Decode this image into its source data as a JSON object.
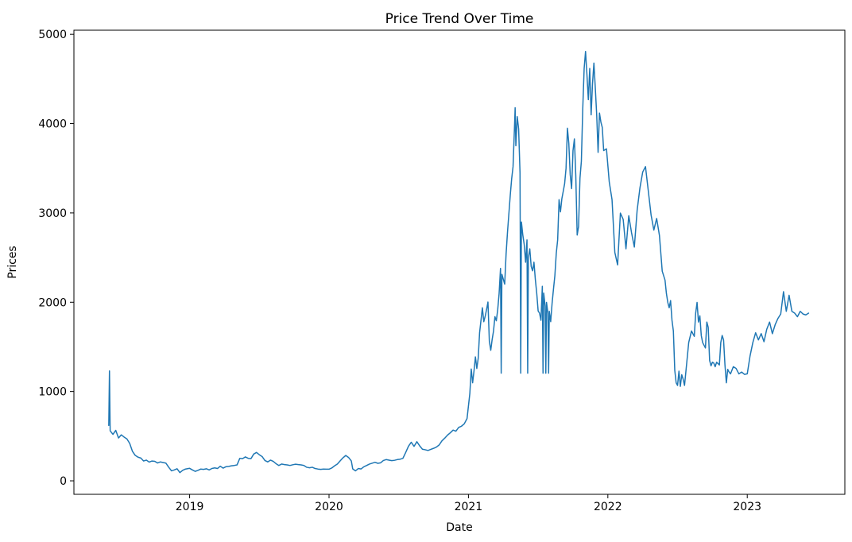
{
  "chart_data": {
    "type": "line",
    "title": "Price Trend Over Time",
    "xlabel": "Date",
    "ylabel": "Prices",
    "line_color": "#1f77b4",
    "background_color": "#ffffff",
    "legend": null,
    "grid": false,
    "xlim": [
      2018.17,
      2023.7
    ],
    "ylim": [
      -151,
      5046
    ],
    "xticks": [
      2019,
      2020,
      2021,
      2022,
      2023
    ],
    "yticks": [
      0,
      1000,
      2000,
      3000,
      4000,
      5000
    ],
    "x_unit": "year (fractional)",
    "points": [
      [
        2018.42,
        620
      ],
      [
        2018.425,
        1230
      ],
      [
        2018.43,
        560
      ],
      [
        2018.45,
        520
      ],
      [
        2018.47,
        565
      ],
      [
        2018.49,
        480
      ],
      [
        2018.51,
        515
      ],
      [
        2018.53,
        490
      ],
      [
        2018.55,
        470
      ],
      [
        2018.57,
        420
      ],
      [
        2018.59,
        330
      ],
      [
        2018.61,
        285
      ],
      [
        2018.63,
        265
      ],
      [
        2018.65,
        255
      ],
      [
        2018.67,
        222
      ],
      [
        2018.69,
        232
      ],
      [
        2018.71,
        210
      ],
      [
        2018.73,
        222
      ],
      [
        2018.75,
        218
      ],
      [
        2018.77,
        200
      ],
      [
        2018.79,
        212
      ],
      [
        2018.81,
        205
      ],
      [
        2018.83,
        198
      ],
      [
        2018.85,
        152
      ],
      [
        2018.87,
        112
      ],
      [
        2018.89,
        122
      ],
      [
        2018.91,
        135
      ],
      [
        2018.93,
        92
      ],
      [
        2018.95,
        118
      ],
      [
        2018.97,
        132
      ],
      [
        2019.0,
        140
      ],
      [
        2019.02,
        122
      ],
      [
        2019.04,
        106
      ],
      [
        2019.06,
        118
      ],
      [
        2019.08,
        132
      ],
      [
        2019.1,
        128
      ],
      [
        2019.12,
        135
      ],
      [
        2019.14,
        122
      ],
      [
        2019.16,
        138
      ],
      [
        2019.18,
        145
      ],
      [
        2019.2,
        138
      ],
      [
        2019.22,
        164
      ],
      [
        2019.24,
        142
      ],
      [
        2019.26,
        158
      ],
      [
        2019.28,
        162
      ],
      [
        2019.3,
        168
      ],
      [
        2019.32,
        172
      ],
      [
        2019.34,
        178
      ],
      [
        2019.36,
        252
      ],
      [
        2019.38,
        248
      ],
      [
        2019.4,
        268
      ],
      [
        2019.42,
        252
      ],
      [
        2019.44,
        248
      ],
      [
        2019.46,
        300
      ],
      [
        2019.48,
        318
      ],
      [
        2019.5,
        292
      ],
      [
        2019.52,
        272
      ],
      [
        2019.54,
        228
      ],
      [
        2019.56,
        212
      ],
      [
        2019.58,
        232
      ],
      [
        2019.6,
        218
      ],
      [
        2019.62,
        192
      ],
      [
        2019.64,
        172
      ],
      [
        2019.66,
        188
      ],
      [
        2019.68,
        182
      ],
      [
        2019.7,
        178
      ],
      [
        2019.72,
        172
      ],
      [
        2019.74,
        180
      ],
      [
        2019.76,
        186
      ],
      [
        2019.78,
        182
      ],
      [
        2019.8,
        178
      ],
      [
        2019.82,
        172
      ],
      [
        2019.84,
        152
      ],
      [
        2019.86,
        146
      ],
      [
        2019.88,
        152
      ],
      [
        2019.9,
        138
      ],
      [
        2019.92,
        132
      ],
      [
        2019.94,
        128
      ],
      [
        2019.96,
        132
      ],
      [
        2019.98,
        130
      ],
      [
        2020.0,
        130
      ],
      [
        2020.02,
        144
      ],
      [
        2020.04,
        168
      ],
      [
        2020.06,
        188
      ],
      [
        2020.08,
        224
      ],
      [
        2020.1,
        258
      ],
      [
        2020.12,
        284
      ],
      [
        2020.14,
        262
      ],
      [
        2020.16,
        222
      ],
      [
        2020.17,
        134
      ],
      [
        2020.19,
        112
      ],
      [
        2020.21,
        138
      ],
      [
        2020.23,
        133
      ],
      [
        2020.25,
        158
      ],
      [
        2020.27,
        172
      ],
      [
        2020.29,
        188
      ],
      [
        2020.31,
        198
      ],
      [
        2020.33,
        208
      ],
      [
        2020.35,
        196
      ],
      [
        2020.37,
        202
      ],
      [
        2020.39,
        228
      ],
      [
        2020.41,
        238
      ],
      [
        2020.43,
        232
      ],
      [
        2020.45,
        226
      ],
      [
        2020.47,
        230
      ],
      [
        2020.49,
        238
      ],
      [
        2020.51,
        242
      ],
      [
        2020.53,
        252
      ],
      [
        2020.55,
        318
      ],
      [
        2020.57,
        388
      ],
      [
        2020.59,
        432
      ],
      [
        2020.61,
        386
      ],
      [
        2020.63,
        438
      ],
      [
        2020.65,
        392
      ],
      [
        2020.67,
        354
      ],
      [
        2020.69,
        348
      ],
      [
        2020.71,
        340
      ],
      [
        2020.73,
        352
      ],
      [
        2020.75,
        364
      ],
      [
        2020.77,
        378
      ],
      [
        2020.79,
        402
      ],
      [
        2020.81,
        448
      ],
      [
        2020.83,
        478
      ],
      [
        2020.85,
        512
      ],
      [
        2020.87,
        538
      ],
      [
        2020.89,
        568
      ],
      [
        2020.91,
        556
      ],
      [
        2020.93,
        598
      ],
      [
        2020.95,
        612
      ],
      [
        2020.97,
        638
      ],
      [
        2020.99,
        698
      ],
      [
        2021.01,
        978
      ],
      [
        2021.02,
        1252
      ],
      [
        2021.03,
        1098
      ],
      [
        2021.04,
        1232
      ],
      [
        2021.05,
        1388
      ],
      [
        2021.06,
        1258
      ],
      [
        2021.07,
        1372
      ],
      [
        2021.08,
        1658
      ],
      [
        2021.09,
        1798
      ],
      [
        2021.1,
        1938
      ],
      [
        2021.11,
        1782
      ],
      [
        2021.12,
        1842
      ],
      [
        2021.13,
        1918
      ],
      [
        2021.14,
        2002
      ],
      [
        2021.15,
        1562
      ],
      [
        2021.16,
        1462
      ],
      [
        2021.17,
        1582
      ],
      [
        2021.18,
        1678
      ],
      [
        2021.19,
        1838
      ],
      [
        2021.2,
        1792
      ],
      [
        2021.21,
        1918
      ],
      [
        2021.22,
        2098
      ],
      [
        2021.23,
        2378
      ],
      [
        2021.235,
        1205
      ],
      [
        2021.24,
        2312
      ],
      [
        2021.26,
        2202
      ],
      [
        2021.27,
        2538
      ],
      [
        2021.28,
        2782
      ],
      [
        2021.3,
        3198
      ],
      [
        2021.31,
        3382
      ],
      [
        2021.32,
        3518
      ],
      [
        2021.33,
        3948
      ],
      [
        2021.335,
        4178
      ],
      [
        2021.34,
        3752
      ],
      [
        2021.35,
        4078
      ],
      [
        2021.36,
        3942
      ],
      [
        2021.37,
        3448
      ],
      [
        2021.375,
        1205
      ],
      [
        2021.38,
        2898
      ],
      [
        2021.39,
        2752
      ],
      [
        2021.4,
        2648
      ],
      [
        2021.41,
        2448
      ],
      [
        2021.42,
        2698
      ],
      [
        2021.425,
        1205
      ],
      [
        2021.43,
        2502
      ],
      [
        2021.44,
        2598
      ],
      [
        2021.45,
        2402
      ],
      [
        2021.46,
        2352
      ],
      [
        2021.47,
        2448
      ],
      [
        2021.48,
        2252
      ],
      [
        2021.49,
        2098
      ],
      [
        2021.5,
        1902
      ],
      [
        2021.51,
        1878
      ],
      [
        2021.52,
        1798
      ],
      [
        2021.53,
        2178
      ],
      [
        2021.535,
        1205
      ],
      [
        2021.54,
        2102
      ],
      [
        2021.55,
        1958
      ],
      [
        2021.555,
        1205
      ],
      [
        2021.56,
        1998
      ],
      [
        2021.57,
        1878
      ],
      [
        2021.575,
        1205
      ],
      [
        2021.58,
        1898
      ],
      [
        2021.59,
        1782
      ],
      [
        2021.6,
        1988
      ],
      [
        2021.61,
        2148
      ],
      [
        2021.62,
        2298
      ],
      [
        2021.63,
        2548
      ],
      [
        2021.64,
        2698
      ],
      [
        2021.65,
        3148
      ],
      [
        2021.66,
        3012
      ],
      [
        2021.67,
        3158
      ],
      [
        2021.68,
        3242
      ],
      [
        2021.69,
        3328
      ],
      [
        2021.7,
        3498
      ],
      [
        2021.71,
        3948
      ],
      [
        2021.72,
        3778
      ],
      [
        2021.73,
        3428
      ],
      [
        2021.74,
        3272
      ],
      [
        2021.75,
        3698
      ],
      [
        2021.76,
        3828
      ],
      [
        2021.77,
        3418
      ],
      [
        2021.78,
        2752
      ],
      [
        2021.79,
        2848
      ],
      [
        2021.8,
        3388
      ],
      [
        2021.81,
        3578
      ],
      [
        2021.82,
        4168
      ],
      [
        2021.83,
        4618
      ],
      [
        2021.84,
        4808
      ],
      [
        2021.85,
        4548
      ],
      [
        2021.86,
        4268
      ],
      [
        2021.87,
        4618
      ],
      [
        2021.88,
        4098
      ],
      [
        2021.89,
        4448
      ],
      [
        2021.9,
        4678
      ],
      [
        2021.91,
        4398
      ],
      [
        2021.92,
        4098
      ],
      [
        2021.93,
        3678
      ],
      [
        2021.94,
        4118
      ],
      [
        2021.95,
        4018
      ],
      [
        2021.96,
        3958
      ],
      [
        2021.97,
        3698
      ],
      [
        2021.99,
        3718
      ],
      [
        2022.01,
        3348
      ],
      [
        2022.03,
        3148
      ],
      [
        2022.05,
        2558
      ],
      [
        2022.07,
        2418
      ],
      [
        2022.09,
        2998
      ],
      [
        2022.11,
        2928
      ],
      [
        2022.13,
        2598
      ],
      [
        2022.15,
        2968
      ],
      [
        2022.17,
        2778
      ],
      [
        2022.19,
        2618
      ],
      [
        2022.21,
        3028
      ],
      [
        2022.23,
        3278
      ],
      [
        2022.25,
        3458
      ],
      [
        2022.27,
        3518
      ],
      [
        2022.29,
        3248
      ],
      [
        2022.31,
        2978
      ],
      [
        2022.33,
        2808
      ],
      [
        2022.35,
        2938
      ],
      [
        2022.37,
        2748
      ],
      [
        2022.39,
        2348
      ],
      [
        2022.41,
        2248
      ],
      [
        2022.42,
        2098
      ],
      [
        2022.43,
        1998
      ],
      [
        2022.44,
        1938
      ],
      [
        2022.45,
        2018
      ],
      [
        2022.46,
        1798
      ],
      [
        2022.47,
        1678
      ],
      [
        2022.48,
        1238
      ],
      [
        2022.49,
        1098
      ],
      [
        2022.5,
        1068
      ],
      [
        2022.51,
        1228
      ],
      [
        2022.52,
        1058
      ],
      [
        2022.53,
        1188
      ],
      [
        2022.54,
        1138
      ],
      [
        2022.55,
        1068
      ],
      [
        2022.56,
        1228
      ],
      [
        2022.58,
        1548
      ],
      [
        2022.6,
        1678
      ],
      [
        2022.62,
        1618
      ],
      [
        2022.63,
        1878
      ],
      [
        2022.64,
        1998
      ],
      [
        2022.65,
        1778
      ],
      [
        2022.66,
        1848
      ],
      [
        2022.67,
        1628
      ],
      [
        2022.68,
        1548
      ],
      [
        2022.7,
        1488
      ],
      [
        2022.71,
        1778
      ],
      [
        2022.72,
        1718
      ],
      [
        2022.73,
        1348
      ],
      [
        2022.74,
        1288
      ],
      [
        2022.75,
        1328
      ],
      [
        2022.76,
        1318
      ],
      [
        2022.77,
        1278
      ],
      [
        2022.78,
        1328
      ],
      [
        2022.8,
        1298
      ],
      [
        2022.81,
        1548
      ],
      [
        2022.82,
        1628
      ],
      [
        2022.83,
        1578
      ],
      [
        2022.84,
        1298
      ],
      [
        2022.85,
        1098
      ],
      [
        2022.86,
        1248
      ],
      [
        2022.87,
        1218
      ],
      [
        2022.88,
        1198
      ],
      [
        2022.9,
        1278
      ],
      [
        2022.92,
        1258
      ],
      [
        2022.94,
        1198
      ],
      [
        2022.96,
        1218
      ],
      [
        2022.98,
        1192
      ],
      [
        2023.0,
        1198
      ],
      [
        2023.02,
        1398
      ],
      [
        2023.04,
        1548
      ],
      [
        2023.06,
        1658
      ],
      [
        2023.08,
        1578
      ],
      [
        2023.1,
        1648
      ],
      [
        2023.12,
        1558
      ],
      [
        2023.14,
        1698
      ],
      [
        2023.16,
        1778
      ],
      [
        2023.18,
        1648
      ],
      [
        2023.2,
        1748
      ],
      [
        2023.22,
        1818
      ],
      [
        2023.24,
        1868
      ],
      [
        2023.26,
        2118
      ],
      [
        2023.28,
        1898
      ],
      [
        2023.3,
        2078
      ],
      [
        2023.32,
        1898
      ],
      [
        2023.34,
        1878
      ],
      [
        2023.36,
        1838
      ],
      [
        2023.38,
        1898
      ],
      [
        2023.4,
        1868
      ],
      [
        2023.42,
        1858
      ],
      [
        2023.44,
        1878
      ]
    ]
  }
}
